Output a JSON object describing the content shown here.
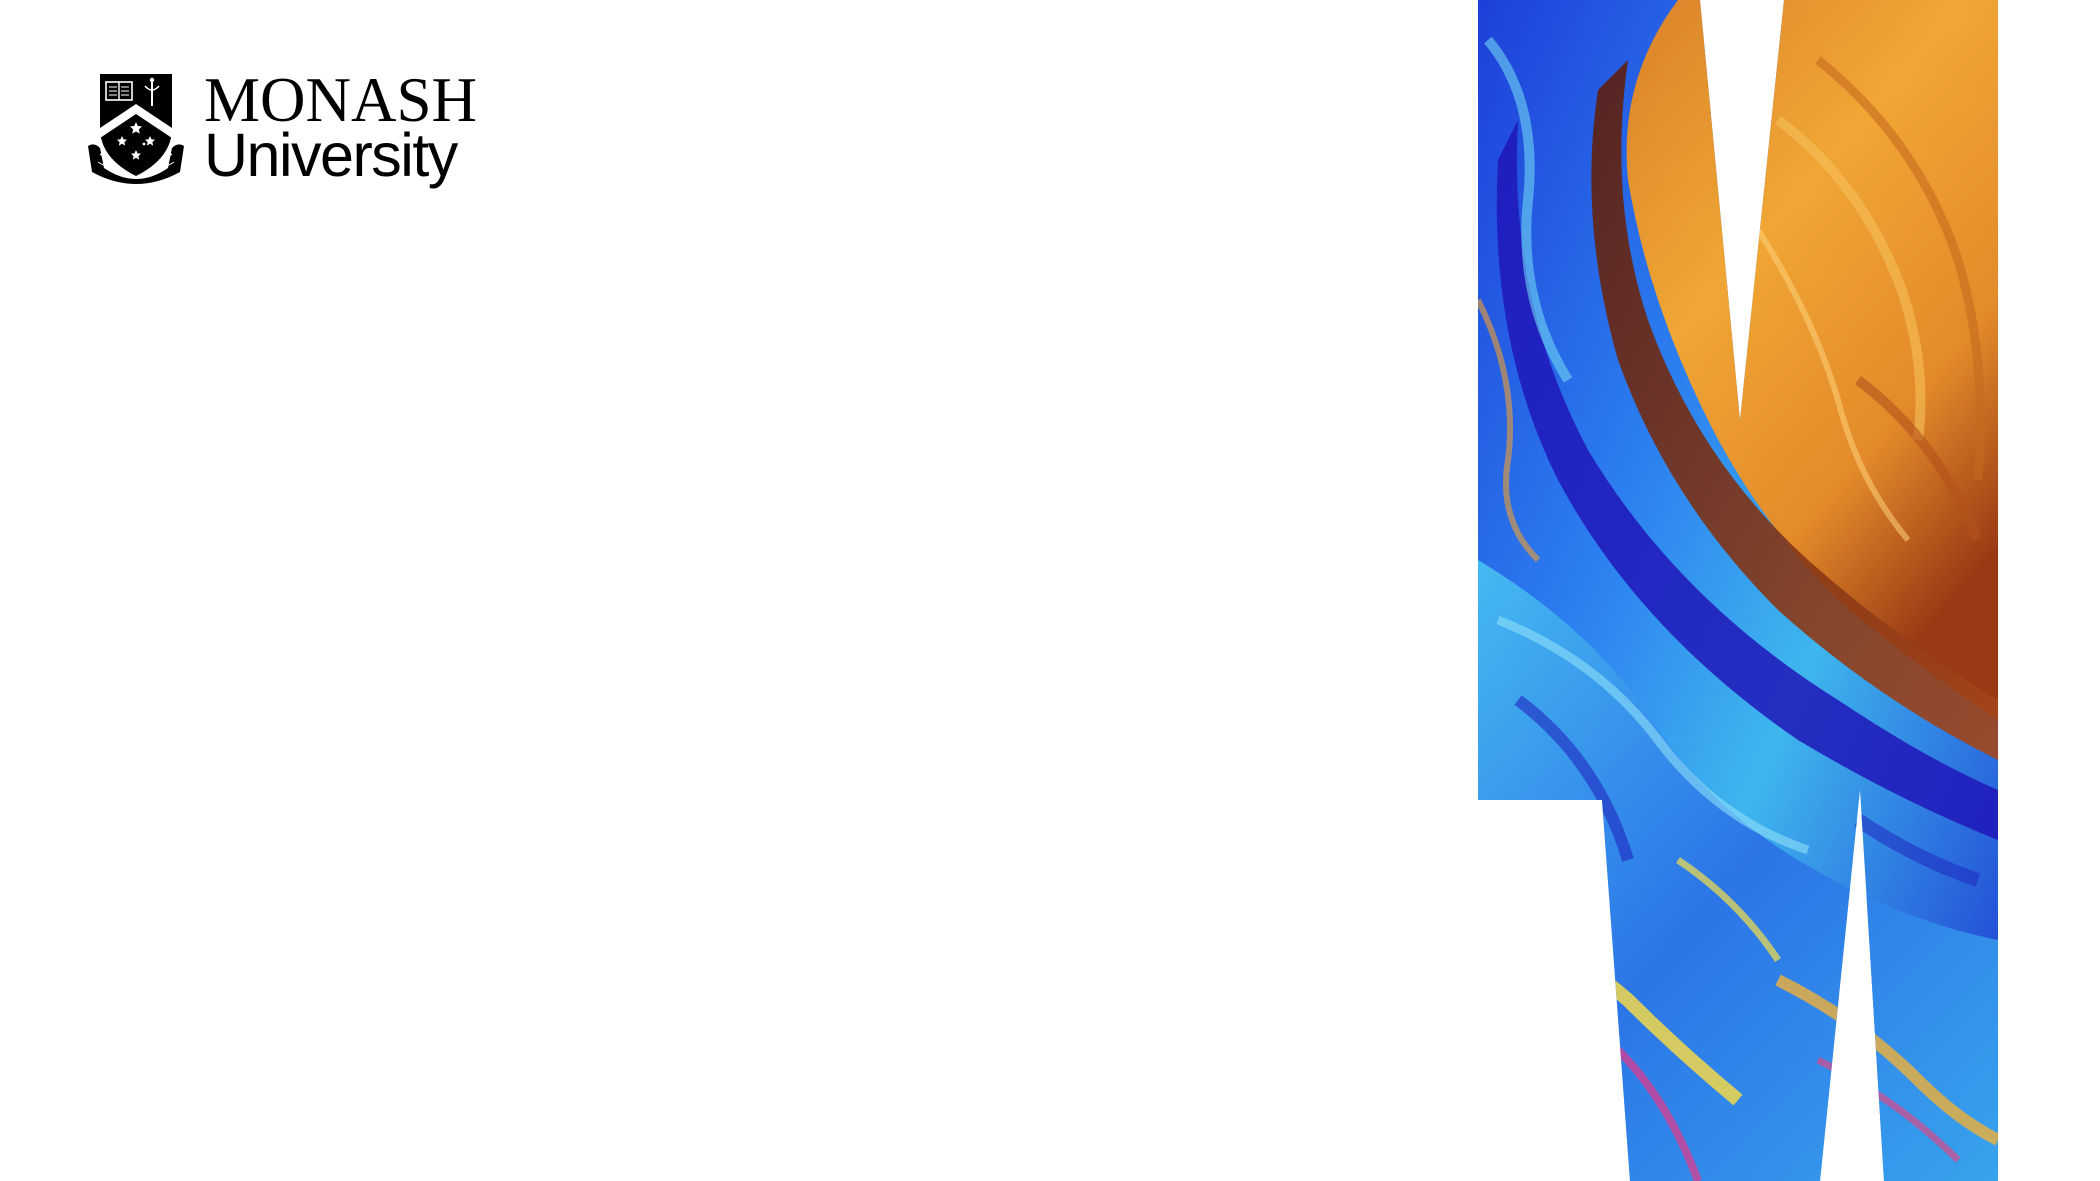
{
  "logo": {
    "line1": "MONASH",
    "line2": "University",
    "icon": "monash-crest-icon"
  },
  "artwork": {
    "icon": "marbled-letter-m-graphic",
    "colors": [
      "#1a2fd0",
      "#2a8ff0",
      "#5cc4f0",
      "#f0a32a",
      "#c55a12",
      "#7a2a10",
      "#f2e04a",
      "#e8388a"
    ]
  },
  "colors": {
    "background": "#ffffff",
    "text": "#000000"
  }
}
